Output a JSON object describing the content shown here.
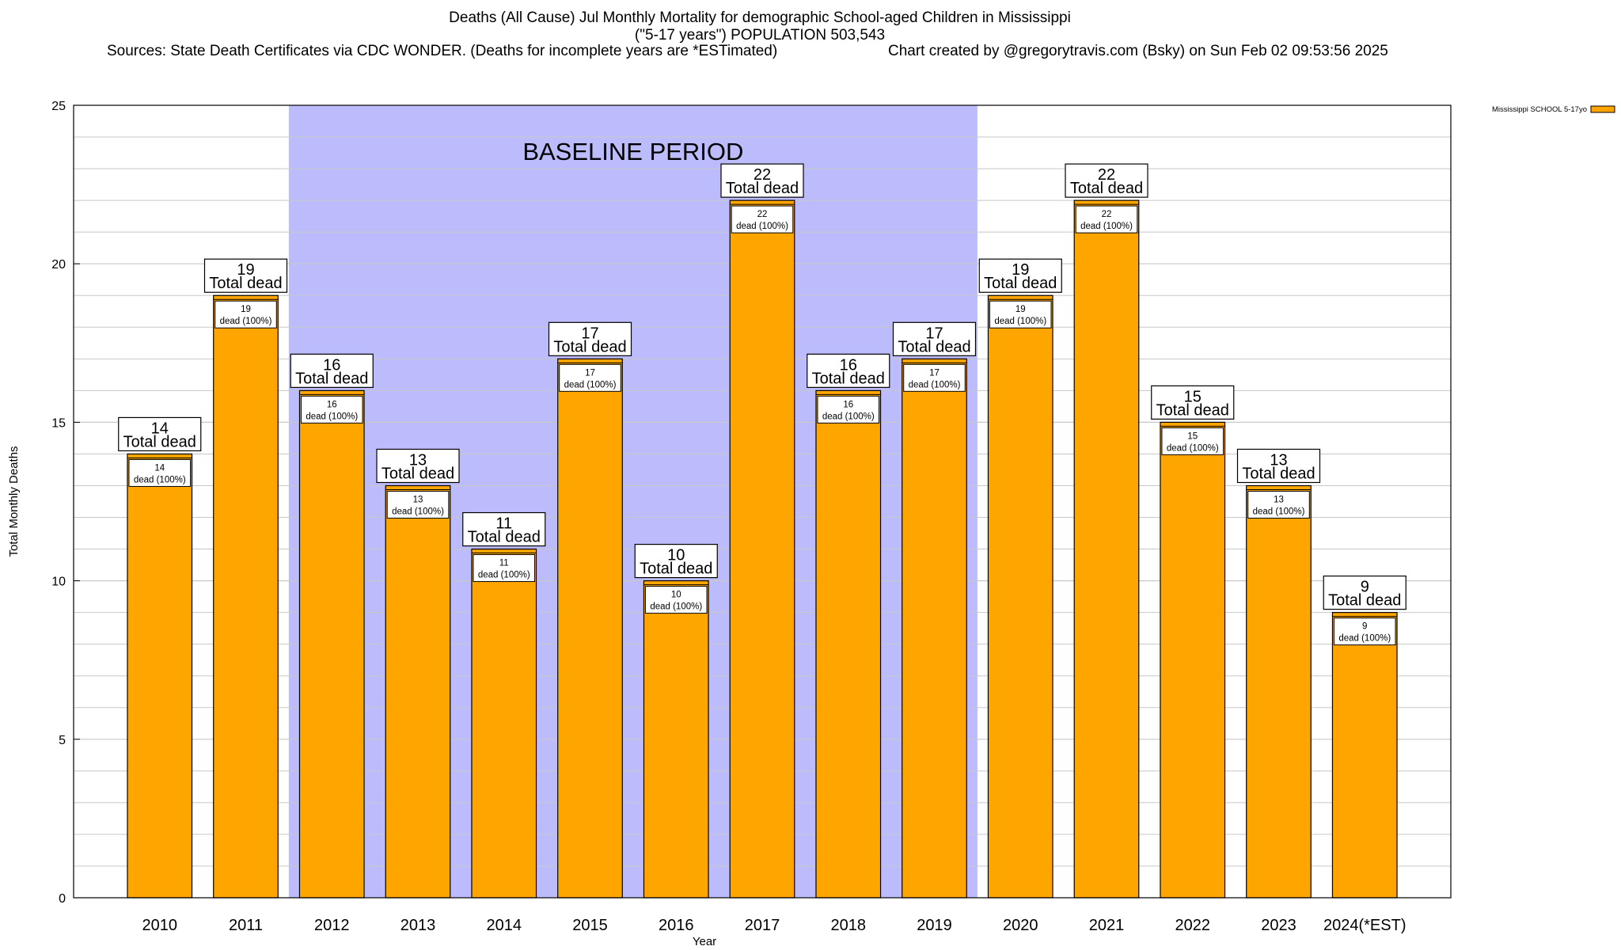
{
  "chart_data": {
    "type": "bar",
    "title": "Deaths (All Cause) Jul Monthly Mortality for demographic School-aged Children in Mississippi",
    "subtitle": "(\"5-17 years\") POPULATION 503,543",
    "sources": "Sources: State Death Certificates via CDC WONDER. (Deaths for incomplete years are *ESTimated)",
    "credit": "Chart created by @gregorytravis.com (Bsky) on Sun Feb 02 09:53:56 2025",
    "xlabel": "Year",
    "ylabel": "Total Monthly Deaths",
    "ylim": [
      0,
      25
    ],
    "yticks": [
      0,
      5,
      10,
      15,
      20,
      25
    ],
    "grid": true,
    "legend_position": "top-right",
    "categories": [
      "2010",
      "2011",
      "2012",
      "2013",
      "2014",
      "2015",
      "2016",
      "2017",
      "2018",
      "2019",
      "2020",
      "2021",
      "2022",
      "2023",
      "2024(*EST)"
    ],
    "series": [
      {
        "name": "Mississippi SCHOOL 5-17yo",
        "values": [
          14,
          19,
          16,
          13,
          11,
          17,
          10,
          22,
          16,
          17,
          19,
          22,
          15,
          13,
          9
        ]
      }
    ],
    "bar_label_top_suffix": "Total dead",
    "bar_label_inner_suffix": "dead (100%)",
    "baseline": {
      "label": "BASELINE PERIOD",
      "start": "2012",
      "end": "2019"
    },
    "colors": {
      "bar": "#ffa500",
      "baseline": "#bcbcfc",
      "grid": "#c8c8c8"
    }
  }
}
